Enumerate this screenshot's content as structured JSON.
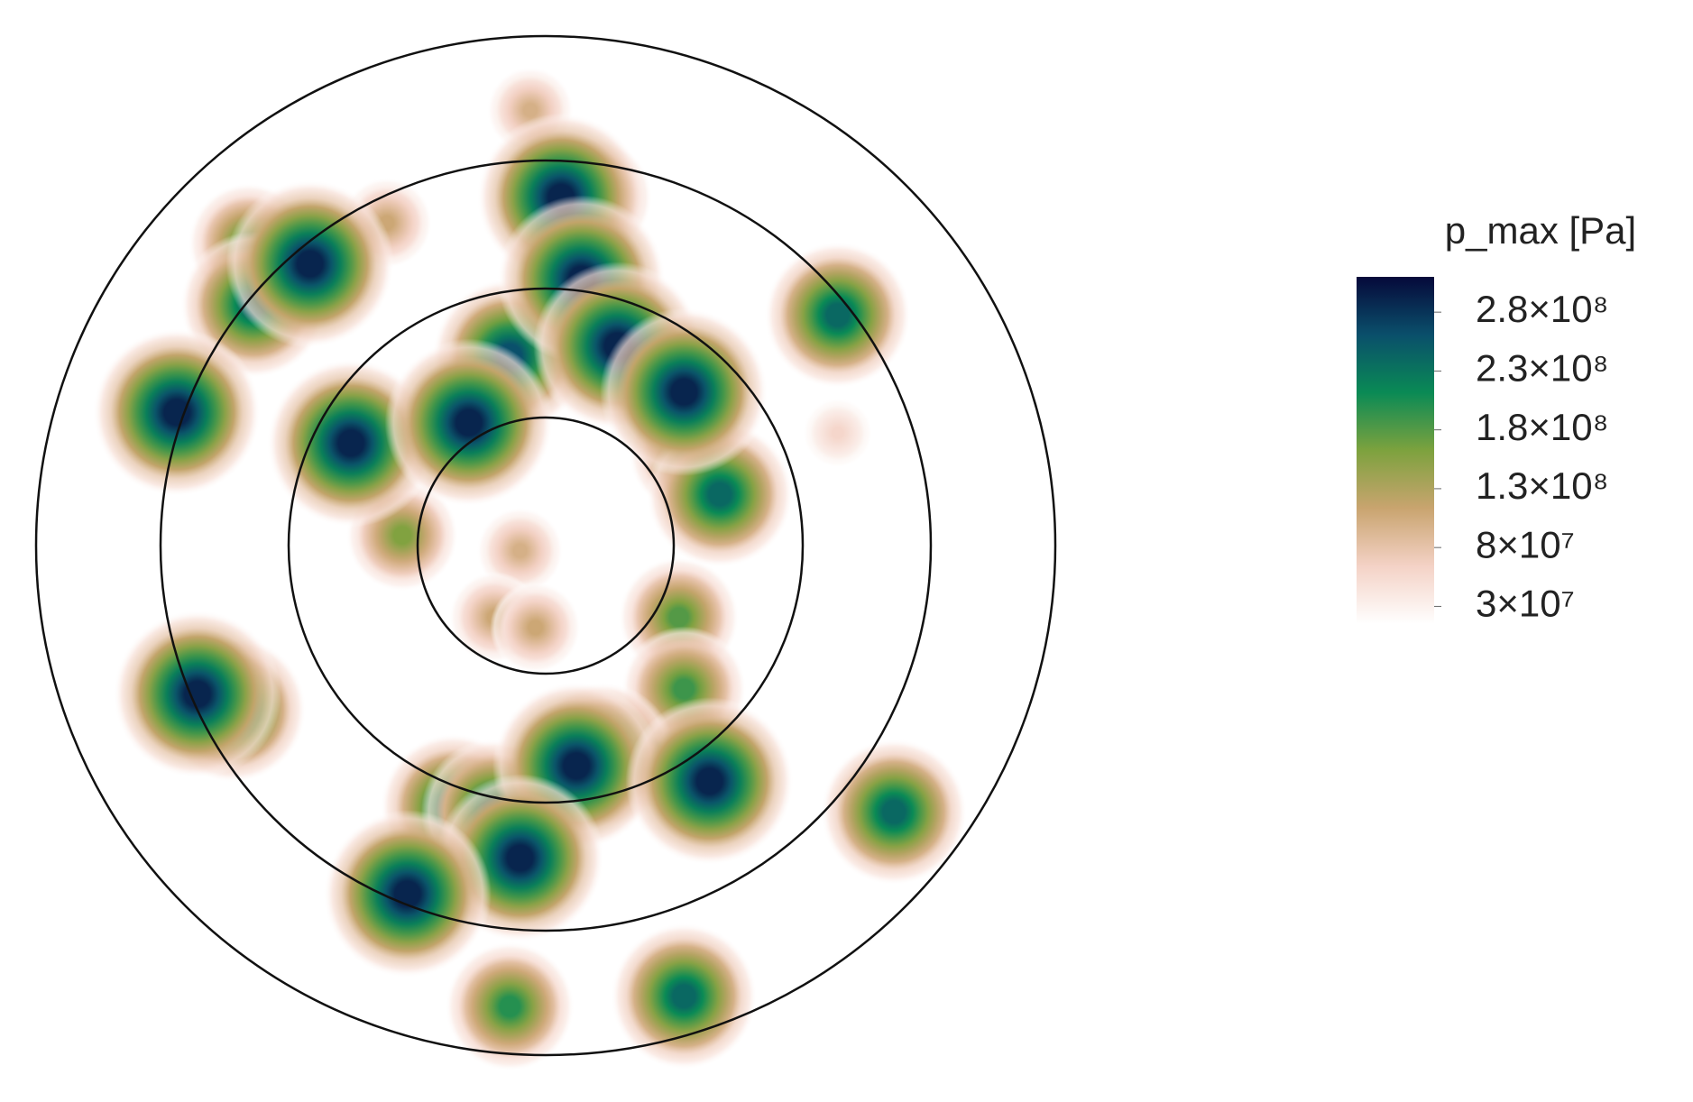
{
  "chart_data": {
    "type": "contour",
    "colorbar_title": "p_max [Pa]",
    "clim": [
      15000000,
      310000000
    ],
    "colormap": [
      "#ffffff",
      "#f4d2c6",
      "#c9a46f",
      "#7da23e",
      "#0a8a55",
      "#0a4f6b",
      "#06093a"
    ],
    "cticks": [
      {
        "value": 280000000,
        "label": "2.8×10⁸"
      },
      {
        "value": 230000000,
        "label": "2.3×10⁸"
      },
      {
        "value": 180000000,
        "label": "1.8×10⁸"
      },
      {
        "value": 130000000,
        "label": "1.3×10⁸"
      },
      {
        "value": 80000000,
        "label": "8×10⁷"
      },
      {
        "value": 30000000,
        "label": "3×10⁷"
      }
    ],
    "spots": {
      "x": [
        0.03,
        0.09,
        0.07,
        -0.46,
        -0.57,
        -0.58,
        0.57,
        -0.72,
        -0.38,
        -0.15,
        -0.07,
        0.14,
        0.27,
        0.28,
        0.34,
        -0.28,
        -0.68,
        -0.61,
        0.26,
        0.27,
        0.21,
        0.06,
        0.11,
        0.32,
        0.68,
        -0.18,
        -0.1,
        -0.05,
        -0.27,
        0.27,
        -0.07,
        -0.1,
        -0.02,
        -0.05,
        0.57,
        -0.31,
        -0.03
      ],
      "y": [
        0.68,
        0.68,
        0.52,
        0.55,
        0.47,
        0.59,
        0.45,
        0.26,
        0.2,
        0.24,
        0.37,
        0.39,
        0.3,
        0.18,
        0.1,
        0.02,
        -0.29,
        -0.32,
        -0.14,
        -0.28,
        -0.4,
        -0.43,
        -0.41,
        -0.46,
        -0.52,
        -0.51,
        -0.52,
        -0.61,
        -0.68,
        -0.88,
        -0.9,
        -0.14,
        -0.16,
        -0.01,
        0.22,
        0.63,
        0.85
      ],
      "values": [
        290000000,
        180000000,
        290000000,
        290000000,
        240000000,
        180000000,
        240000000,
        290000000,
        290000000,
        290000000,
        260000000,
        290000000,
        290000000,
        180000000,
        240000000,
        160000000,
        290000000,
        240000000,
        180000000,
        190000000,
        180000000,
        290000000,
        240000000,
        290000000,
        240000000,
        240000000,
        240000000,
        290000000,
        290000000,
        240000000,
        200000000,
        110000000,
        110000000,
        100000000,
        60000000,
        110000000,
        100000000
      ]
    }
  }
}
